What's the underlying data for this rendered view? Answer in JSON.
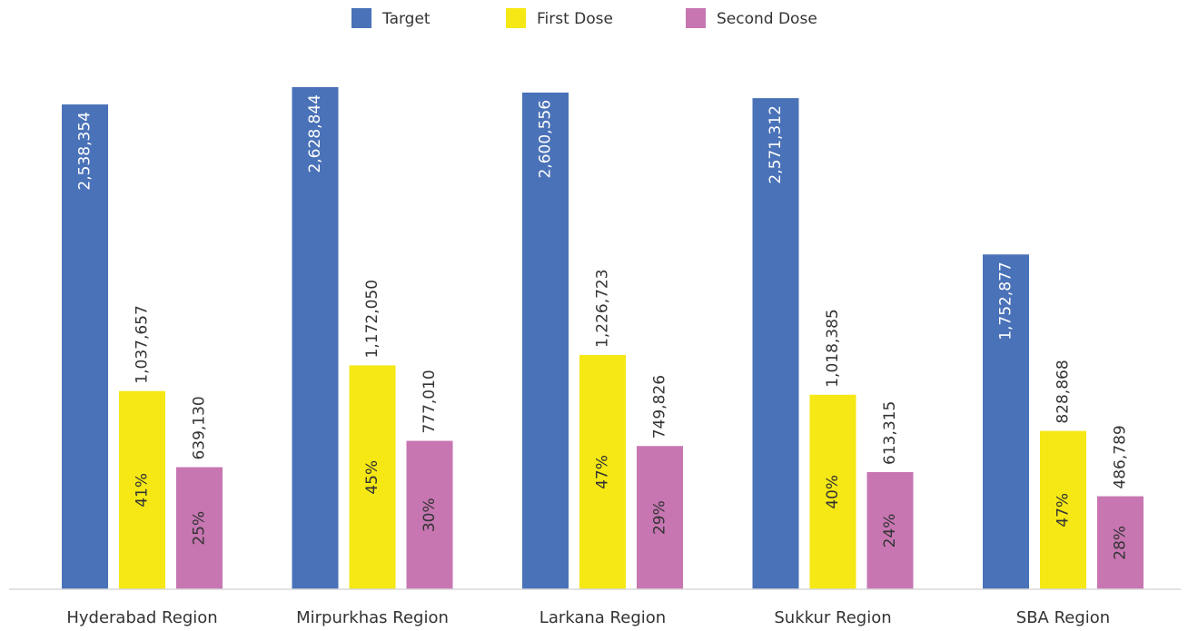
{
  "chart_data": {
    "type": "bar",
    "categories": [
      "Hyderabad Region",
      "Mirpurkhas Region",
      "Larkana Region",
      "Sukkur Region",
      "SBA Region"
    ],
    "series": [
      {
        "name": "Target",
        "color": "#4A72B8",
        "values": [
          2538354,
          2628844,
          2600556,
          2571312,
          1752877
        ],
        "labels": [
          "2,538,354",
          "2,628,844",
          "2,600,556",
          "2,571,312",
          "1,752,877"
        ]
      },
      {
        "name": "First Dose",
        "color": "#F5E814",
        "values": [
          1037657,
          1172050,
          1226723,
          1018385,
          828868
        ],
        "labels": [
          "1,037,657",
          "1,172,050",
          "1,226,723",
          "1,018,385",
          "828,868"
        ],
        "percent_labels": [
          "41%",
          "45%",
          "47%",
          "40%",
          "47%"
        ]
      },
      {
        "name": "Second Dose",
        "color": "#C776B2",
        "values": [
          639130,
          777010,
          749826,
          613315,
          486789
        ],
        "labels": [
          "639,130",
          "777,010",
          "749,826",
          "613,315",
          "486,789"
        ],
        "percent_labels": [
          "25%",
          "30%",
          "29%",
          "24%",
          "28%"
        ]
      }
    ],
    "ylim": [
      0,
      2800000
    ],
    "legend_position": "top-center",
    "grid": false
  }
}
